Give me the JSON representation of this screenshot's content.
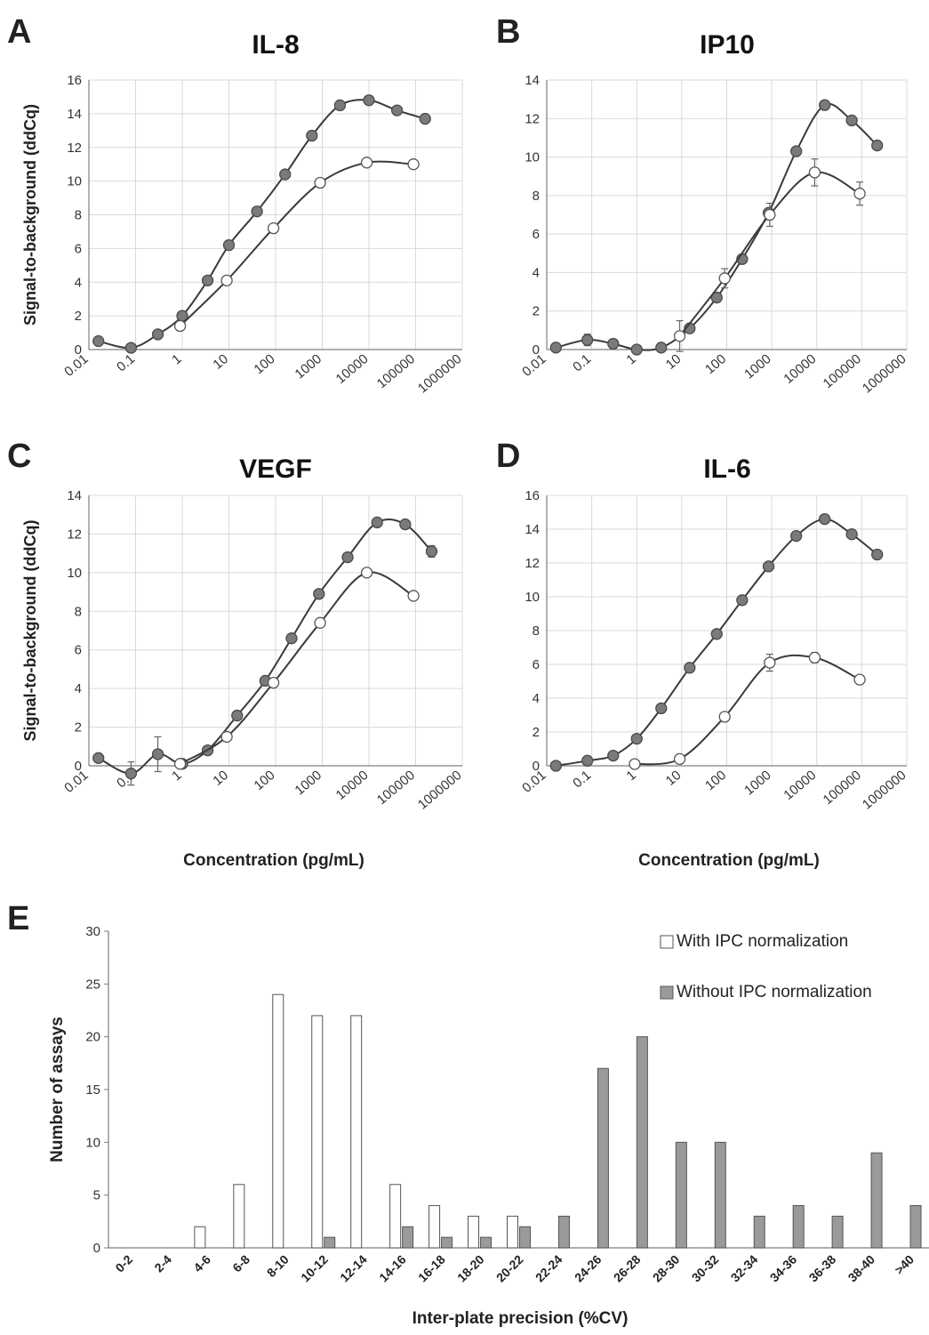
{
  "colors": {
    "filled_marker": "#7a7a7a",
    "open_marker": "#ffffff",
    "line": "#3a3a3a",
    "grid": "#d9d9d9",
    "axis": "#7f7f7f",
    "bar_with": "#ffffff",
    "bar_without": "#9a9a9a"
  },
  "xlabel_shared": "Concentration (pg/mL)",
  "chart_data": [
    {
      "panel": "A",
      "type": "line",
      "title": "IL-8",
      "ylabel": "Signal-to-background (ddCq)",
      "xscale": "log",
      "xlim": [
        0.01,
        1000000
      ],
      "ylim": [
        0,
        16
      ],
      "xticks": [
        "0.01",
        "0.1",
        "1",
        "10",
        "100",
        "1000",
        "10000",
        "100000",
        "1000000"
      ],
      "yticks": [
        "0",
        "2",
        "4",
        "6",
        "8",
        "10",
        "12",
        "14",
        "16"
      ],
      "grid": true,
      "series": [
        {
          "marker": "filled",
          "x": [
            0.016,
            0.08,
            0.3,
            1,
            3.5,
            10,
            40,
            160,
            600,
            2400,
            10000,
            40000,
            160000
          ],
          "y": [
            0.5,
            0.1,
            0.9,
            2.0,
            4.1,
            6.2,
            8.2,
            10.4,
            12.7,
            14.5,
            14.8,
            14.2,
            13.7
          ],
          "err": []
        },
        {
          "marker": "open",
          "x": [
            0.9,
            9,
            90,
            900,
            9000,
            90000
          ],
          "y": [
            1.4,
            4.1,
            7.2,
            9.9,
            11.1,
            11.0
          ],
          "err": []
        }
      ]
    },
    {
      "panel": "B",
      "type": "line",
      "title": "IP10",
      "ylabel": "",
      "xscale": "log",
      "xlim": [
        0.01,
        1000000
      ],
      "ylim": [
        0,
        14
      ],
      "xticks": [
        "0.01",
        "0.1",
        "1",
        "10",
        "100",
        "1000",
        "10000",
        "100000",
        "1000000"
      ],
      "yticks": [
        "0",
        "2",
        "4",
        "6",
        "8",
        "10",
        "12",
        "14"
      ],
      "grid": true,
      "series": [
        {
          "marker": "filled",
          "x": [
            0.016,
            0.08,
            0.3,
            1,
            3.5,
            15,
            60,
            220,
            850,
            3500,
            15000,
            60000,
            220000
          ],
          "y": [
            0.1,
            0.5,
            0.3,
            0.0,
            0.1,
            1.1,
            2.7,
            4.7,
            7.1,
            10.3,
            12.7,
            11.9,
            10.6
          ],
          "err": [
            0,
            0.3,
            0.2,
            0,
            0,
            0,
            0,
            0,
            0,
            0,
            0,
            0,
            0.2
          ]
        },
        {
          "marker": "open",
          "x": [
            9,
            90,
            900,
            9000,
            90000
          ],
          "y": [
            0.7,
            3.7,
            7.0,
            9.2,
            8.1
          ],
          "err": [
            0.8,
            0.5,
            0.6,
            0.7,
            0.6
          ]
        }
      ]
    },
    {
      "panel": "C",
      "type": "line",
      "title": "VEGF",
      "ylabel": "Signal-to-background (ddCq)",
      "xscale": "log",
      "xlim": [
        0.01,
        1000000
      ],
      "ylim": [
        0,
        14
      ],
      "xticks": [
        "0.01",
        "0.1",
        "1",
        "10",
        "100",
        "1000",
        "10000",
        "100000",
        "1000000"
      ],
      "yticks": [
        "0",
        "2",
        "4",
        "6",
        "8",
        "10",
        "12",
        "14"
      ],
      "grid": true,
      "series": [
        {
          "marker": "filled",
          "x": [
            0.016,
            0.08,
            0.3,
            1,
            3.5,
            15,
            60,
            220,
            850,
            3500,
            15000,
            60000,
            220000
          ],
          "y": [
            0.4,
            -0.4,
            0.6,
            0.1,
            0.8,
            2.6,
            4.4,
            6.6,
            8.9,
            10.8,
            12.6,
            12.5,
            11.1
          ],
          "err": [
            0,
            0.6,
            0.9,
            0,
            0,
            0,
            0,
            0,
            0,
            0,
            0,
            0,
            0.3
          ]
        },
        {
          "marker": "open",
          "x": [
            0.9,
            9,
            90,
            900,
            9000,
            90000
          ],
          "y": [
            0.1,
            1.5,
            4.3,
            7.4,
            10.0,
            8.8
          ],
          "err": [
            0.2,
            0,
            0,
            0,
            0,
            0
          ]
        }
      ]
    },
    {
      "panel": "D",
      "type": "line",
      "title": "IL-6",
      "ylabel": "",
      "xscale": "log",
      "xlim": [
        0.01,
        1000000
      ],
      "ylim": [
        0,
        16
      ],
      "xticks": [
        "0.01",
        "0.1",
        "1",
        "10",
        "100",
        "1000",
        "10000",
        "100000",
        "1000000"
      ],
      "yticks": [
        "0",
        "2",
        "4",
        "6",
        "8",
        "10",
        "12",
        "14",
        "16"
      ],
      "grid": true,
      "series": [
        {
          "marker": "filled",
          "x": [
            0.016,
            0.08,
            0.3,
            1,
            3.5,
            15,
            60,
            220,
            850,
            3500,
            15000,
            60000,
            220000
          ],
          "y": [
            0.0,
            0.3,
            0.6,
            1.6,
            3.4,
            5.8,
            7.8,
            9.8,
            11.8,
            13.6,
            14.6,
            13.7,
            12.5
          ],
          "err": []
        },
        {
          "marker": "open",
          "x": [
            0.9,
            9,
            90,
            900,
            9000,
            90000
          ],
          "y": [
            0.1,
            0.4,
            2.9,
            6.1,
            6.4,
            5.1
          ],
          "err": [
            0,
            0,
            0,
            0.5,
            0.3,
            0
          ]
        }
      ]
    },
    {
      "panel": "E",
      "type": "bar",
      "title": "",
      "xlabel": "Inter-plate precision (%CV)",
      "ylabel": "Number of assays",
      "ylim": [
        0,
        30
      ],
      "yticks": [
        "0",
        "5",
        "10",
        "15",
        "20",
        "25",
        "30"
      ],
      "legend": "top-right",
      "categories": [
        "0-2",
        "2-4",
        "4-6",
        "6-8",
        "8-10",
        "10-12",
        "12-14",
        "14-16",
        "16-18",
        "18-20",
        "20-22",
        "22-24",
        "24-26",
        "26-28",
        "28-30",
        "30-32",
        "32-34",
        "34-36",
        "36-38",
        "38-40",
        ">40"
      ],
      "series": [
        {
          "name": "With IPC normalization",
          "values": [
            0,
            0,
            2,
            6,
            24,
            22,
            22,
            6,
            4,
            3,
            3,
            0,
            0,
            0,
            0,
            0,
            0,
            0,
            0,
            0,
            0
          ]
        },
        {
          "name": "Without IPC normalization",
          "values": [
            0,
            0,
            0,
            0,
            0,
            1,
            0,
            2,
            1,
            1,
            2,
            3,
            17,
            20,
            10,
            10,
            3,
            4,
            3,
            9,
            4
          ]
        }
      ]
    }
  ]
}
